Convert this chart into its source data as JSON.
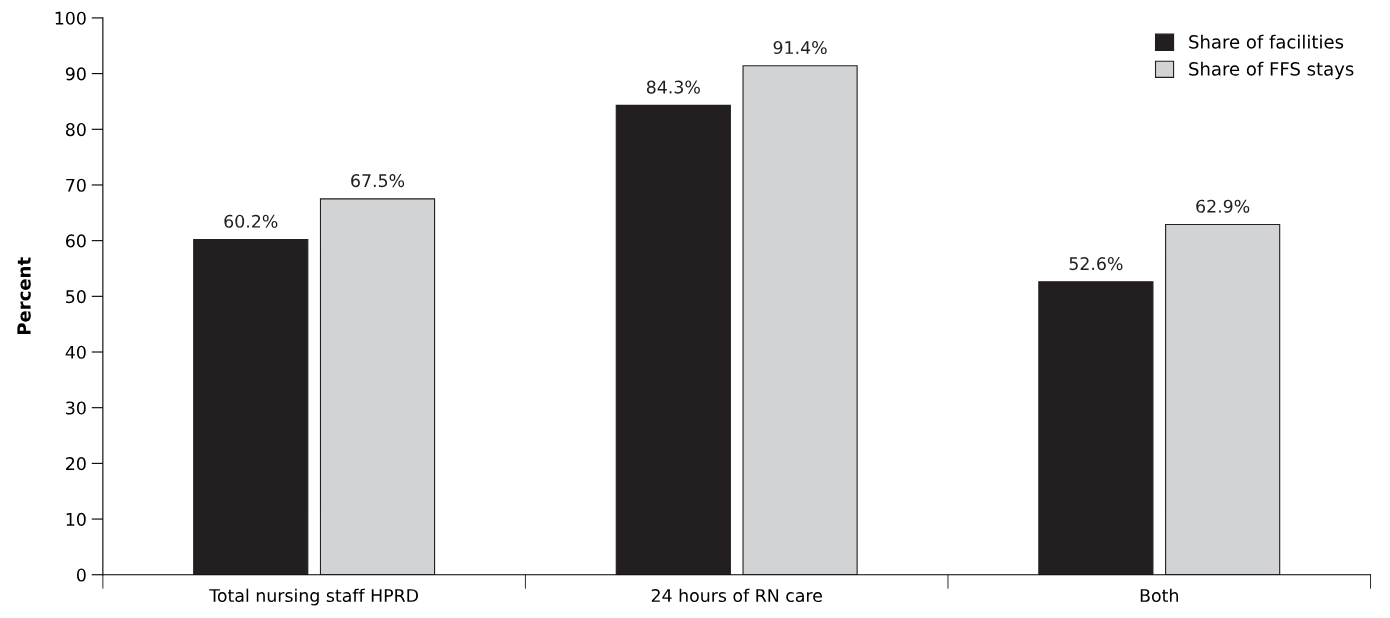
{
  "chart_data": {
    "type": "bar",
    "ylabel": "Percent",
    "categories": [
      "Total nursing staff HPRD",
      "24 hours of RN care",
      "Both"
    ],
    "series": [
      {
        "name": "Share of facilities",
        "color": "#231f20",
        "values": [
          60.2,
          84.3,
          52.6
        ],
        "value_labels": [
          "60.2%",
          "84.3%",
          "52.6%"
        ]
      },
      {
        "name": "Share of FFS stays",
        "color": "#d1d3d4",
        "values": [
          67.5,
          91.4,
          62.9
        ],
        "value_labels": [
          "67.5%",
          "91.4%",
          "62.9%"
        ]
      }
    ],
    "ylim": [
      0,
      100
    ],
    "yticks": [
      0,
      10,
      20,
      30,
      40,
      50,
      60,
      70,
      80,
      90,
      100
    ],
    "grid": false,
    "legend": "top right"
  }
}
